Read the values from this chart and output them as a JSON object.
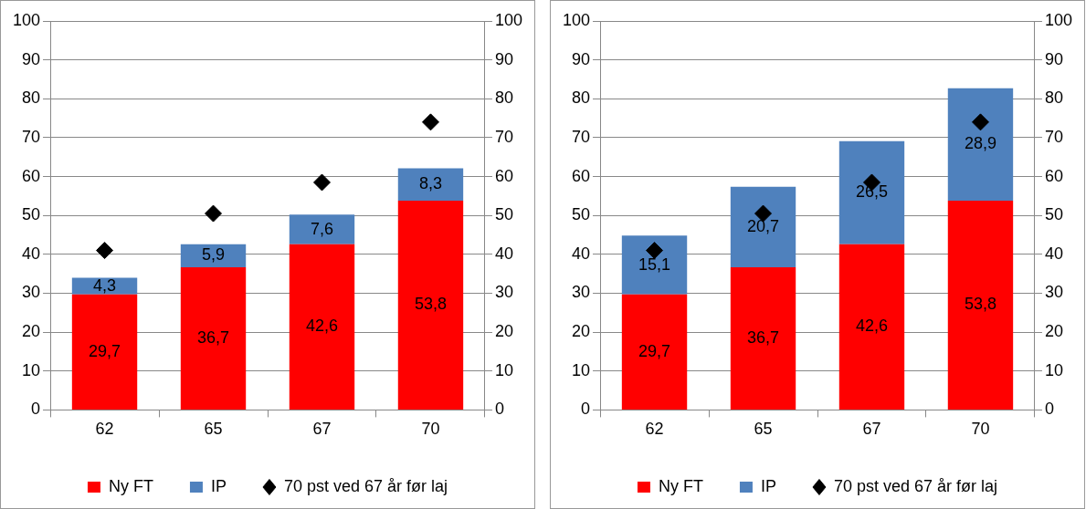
{
  "chart_data": [
    {
      "type": "bar",
      "stacked": true,
      "categories": [
        "62",
        "65",
        "67",
        "70"
      ],
      "ylim": [
        0,
        100
      ],
      "yticks": [
        0,
        10,
        20,
        30,
        40,
        50,
        60,
        70,
        80,
        90,
        100
      ],
      "y2lim": [
        0,
        100
      ],
      "y2ticks": [
        0,
        10,
        20,
        30,
        40,
        50,
        60,
        70,
        80,
        90,
        100
      ],
      "grid": "y",
      "legend": "bottom",
      "series": [
        {
          "name": "Ny FT",
          "color": "#ff0000",
          "values": [
            29.7,
            36.7,
            42.6,
            53.8
          ],
          "value_labels": [
            "29,7",
            "36,7",
            "42,6",
            "53,8"
          ]
        },
        {
          "name": "IP",
          "color": "#4f81bd",
          "values": [
            4.3,
            5.9,
            7.6,
            8.3
          ],
          "value_labels": [
            "4,3",
            "5,9",
            "7,6",
            "8,3"
          ]
        },
        {
          "name": "70 pst ved 67 år før laj",
          "type": "scatter",
          "marker": "diamond",
          "color": "#000000",
          "x": [
            "62",
            "65",
            "67",
            "70"
          ],
          "values": [
            41,
            50.5,
            58.5,
            74
          ]
        }
      ]
    },
    {
      "type": "bar",
      "stacked": true,
      "categories": [
        "62",
        "65",
        "67",
        "70"
      ],
      "ylim": [
        0,
        100
      ],
      "yticks": [
        0,
        10,
        20,
        30,
        40,
        50,
        60,
        70,
        80,
        90,
        100
      ],
      "y2lim": [
        0,
        100
      ],
      "y2ticks": [
        0,
        10,
        20,
        30,
        40,
        50,
        60,
        70,
        80,
        90,
        100
      ],
      "grid": "y",
      "legend": "bottom",
      "series": [
        {
          "name": "Ny FT",
          "color": "#ff0000",
          "values": [
            29.7,
            36.7,
            42.6,
            53.8
          ],
          "value_labels": [
            "29,7",
            "36,7",
            "42,6",
            "53,8"
          ]
        },
        {
          "name": "IP",
          "color": "#4f81bd",
          "values": [
            15.1,
            20.7,
            26.5,
            28.9
          ],
          "value_labels": [
            "15,1",
            "20,7",
            "26,5",
            "28,9"
          ]
        },
        {
          "name": "70 pst ved 67 år før laj",
          "type": "scatter",
          "marker": "diamond",
          "color": "#000000",
          "x": [
            "62",
            "65",
            "67",
            "70"
          ],
          "values": [
            41,
            50.5,
            58.5,
            74
          ]
        }
      ]
    }
  ]
}
